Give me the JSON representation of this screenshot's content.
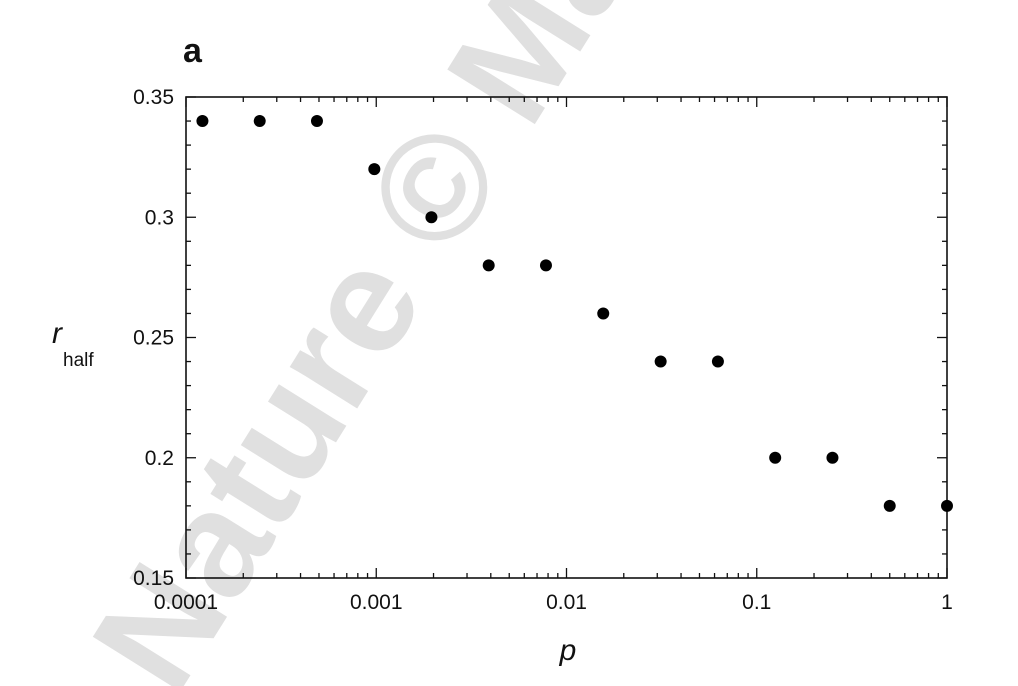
{
  "watermark": {
    "text": "Nature © Macmillan",
    "color": "#d9d9d9"
  },
  "panel_label": "a",
  "colors": {
    "axis": "#111111",
    "marker": "#000000"
  },
  "chart_data": {
    "type": "scatter",
    "title": "",
    "xlabel": "p",
    "ylabel": "r",
    "ylabel_subscript": "half",
    "xscale": "log",
    "xlim": [
      0.0001,
      1
    ],
    "ylim": [
      0.15,
      0.35
    ],
    "x_ticks": [
      0.0001,
      0.001,
      0.01,
      0.1,
      1
    ],
    "x_tick_labels": [
      "0.0001",
      "0.001",
      "0.01",
      "0.1",
      "1"
    ],
    "y_ticks": [
      0.15,
      0.2,
      0.25,
      0.3,
      0.35
    ],
    "y_tick_labels": [
      "0.15",
      "0.2",
      "0.25",
      "0.3",
      "0.35"
    ],
    "grid": false,
    "legend": "none",
    "series": [
      {
        "x": [
          0.000122,
          0.000244,
          0.000488,
          0.000977,
          0.00195,
          0.0039,
          0.0078,
          0.0156,
          0.03125,
          0.0625,
          0.125,
          0.25,
          0.5,
          1
        ],
        "y": [
          0.34,
          0.34,
          0.34,
          0.32,
          0.3,
          0.28,
          0.28,
          0.26,
          0.24,
          0.24,
          0.2,
          0.2,
          0.18,
          0.18
        ]
      }
    ]
  }
}
